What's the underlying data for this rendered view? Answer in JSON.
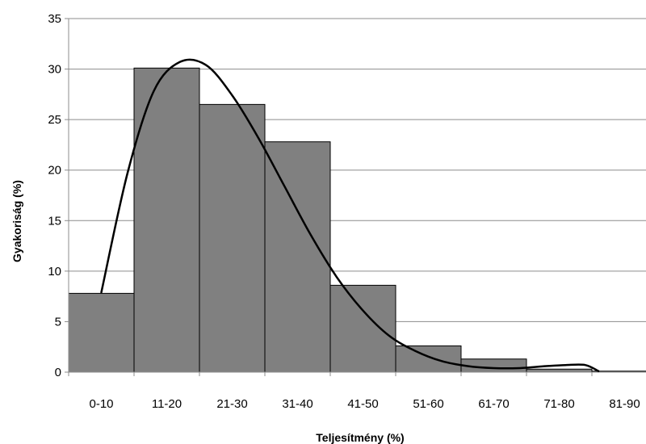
{
  "chart_data": {
    "type": "bar",
    "title": "",
    "xlabel": "Teljesítmény (%)",
    "ylabel": "Gyakoriság (%)",
    "categories": [
      "0-10",
      "11-20",
      "21-30",
      "31-40",
      "41-50",
      "51-60",
      "61-70",
      "71-80",
      "81-90"
    ],
    "values": [
      7.8,
      30.1,
      26.5,
      22.8,
      8.6,
      2.6,
      1.3,
      0.3,
      0.1
    ],
    "ylim": [
      0,
      35
    ],
    "yticks": [
      0,
      5,
      10,
      15,
      20,
      25,
      30,
      35
    ],
    "grid": true,
    "legend": "none",
    "bar_color": "#808080",
    "fitted_curve": {
      "type": "line",
      "x": [
        0.5,
        0.9,
        1.3,
        1.7,
        2.1,
        2.5,
        2.9,
        3.3,
        3.7,
        4.1,
        4.5,
        4.9,
        5.3,
        5.7,
        6.1,
        6.5,
        6.9,
        7.3,
        7.6,
        7.9,
        8.1
      ],
      "values": [
        7.9,
        19.7,
        27.8,
        30.7,
        30.4,
        27.4,
        23.2,
        18.4,
        13.6,
        9.4,
        6.1,
        3.6,
        2.1,
        1.1,
        0.6,
        0.4,
        0.4,
        0.6,
        0.7,
        0.7,
        0.1
      ]
    }
  }
}
